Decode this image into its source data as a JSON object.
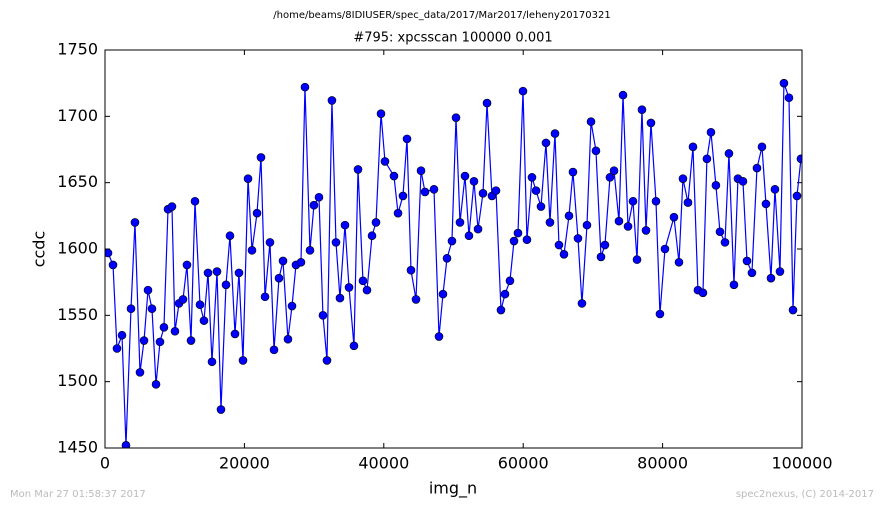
{
  "chart_data": {
    "type": "line",
    "suptitle": "/home/beams/8IDIUSER/spec_data/2017/Mar2017/leheny20170321",
    "title": "#795: xpcsscan 100000 0.001",
    "xlabel": "img_n",
    "ylabel": "ccdc",
    "footer_left": "Mon Mar 27 01:58:37 2017",
    "footer_right": "spec2nexus, (C) 2014-2017",
    "xlim": [
      0,
      100000
    ],
    "xticks": [
      0,
      20000,
      40000,
      60000,
      80000,
      100000
    ],
    "ylim": [
      1450,
      1750
    ],
    "yticks": [
      1450,
      1500,
      1550,
      1600,
      1650,
      1700,
      1750
    ],
    "x": [
      430,
      1150,
      1720,
      2440,
      3010,
      3730,
      4300,
      5020,
      5600,
      6170,
      6740,
      7320,
      7890,
      8460,
      9040,
      9610,
      10040,
      10620,
      11190,
      11760,
      12340,
      12910,
      13630,
      14200,
      14780,
      15350,
      16070,
      16640,
      17360,
      17930,
      18650,
      19220,
      19800,
      20520,
      21090,
      21810,
      22380,
      22960,
      23670,
      24250,
      24960,
      25540,
      26250,
      26830,
      27400,
      28120,
      28690,
      29410,
      29980,
      30700,
      31270,
      31850,
      32560,
      33140,
      33710,
      34430,
      35010,
      35720,
      36300,
      37010,
      37590,
      38310,
      38880,
      39600,
      40170,
      41460,
      42040,
      42750,
      43330,
      43900,
      44620,
      45340,
      45910,
      47200,
      47920,
      48490,
      49070,
      49780,
      50360,
      50930,
      51650,
      52220,
      52940,
      53520,
      54230,
      54810,
      55520,
      56100,
      56810,
      57390,
      58100,
      58680,
      59250,
      59970,
      60540,
      61260,
      61840,
      62550,
      63270,
      63840,
      64560,
      65130,
      65850,
      66570,
      67140,
      67860,
      68430,
      69150,
      69730,
      70440,
      71160,
      71730,
      72450,
      73030,
      73740,
      74320,
      75040,
      75750,
      76330,
      77040,
      77620,
      78330,
      79050,
      79620,
      80340,
      81630,
      82350,
      82920,
      83640,
      84360,
      85070,
      85790,
      86360,
      86940,
      87650,
      88230,
      88950,
      89520,
      90240,
      90810,
      91530,
      92110,
      92820,
      93540,
      94260,
      94830,
      95550,
      96120,
      96840,
      97410,
      98130,
      98710,
      99280,
      99850
    ],
    "series": [
      {
        "name": "ccdc",
        "color": "#0000ff",
        "values": [
          1597,
          1588,
          1525,
          1535,
          1452,
          1555,
          1620,
          1507,
          1531,
          1569,
          1555,
          1498,
          1530,
          1541,
          1630,
          1632,
          1538,
          1559,
          1562,
          1588,
          1531,
          1636,
          1558,
          1546,
          1582,
          1515,
          1583,
          1479,
          1573,
          1610,
          1536,
          1582,
          1516,
          1653,
          1599,
          1627,
          1669,
          1564,
          1605,
          1524,
          1578,
          1591,
          1532,
          1557,
          1588,
          1590,
          1722,
          1599,
          1633,
          1639,
          1550,
          1516,
          1712,
          1605,
          1563,
          1618,
          1571,
          1527,
          1660,
          1576,
          1569,
          1610,
          1620,
          1702,
          1666,
          1655,
          1627,
          1640,
          1683,
          1584,
          1562,
          1659,
          1643,
          1645,
          1534,
          1566,
          1593,
          1606,
          1699,
          1620,
          1655,
          1610,
          1651,
          1615,
          1642,
          1710,
          1640,
          1644,
          1554,
          1566,
          1576,
          1606,
          1612,
          1719,
          1607,
          1654,
          1644,
          1632,
          1680,
          1620,
          1687,
          1603,
          1596,
          1625,
          1658,
          1608,
          1559,
          1618,
          1696,
          1674,
          1594,
          1603,
          1654,
          1659,
          1621,
          1716,
          1617,
          1636,
          1592,
          1705,
          1614,
          1695,
          1636,
          1551,
          1600,
          1624,
          1590,
          1653,
          1635,
          1677,
          1569,
          1567,
          1668,
          1688,
          1648,
          1613,
          1605,
          1672,
          1573,
          1653,
          1651,
          1591,
          1582,
          1661,
          1677,
          1634,
          1578,
          1645,
          1583,
          1725,
          1714,
          1554,
          1640,
          1668
        ]
      }
    ]
  }
}
